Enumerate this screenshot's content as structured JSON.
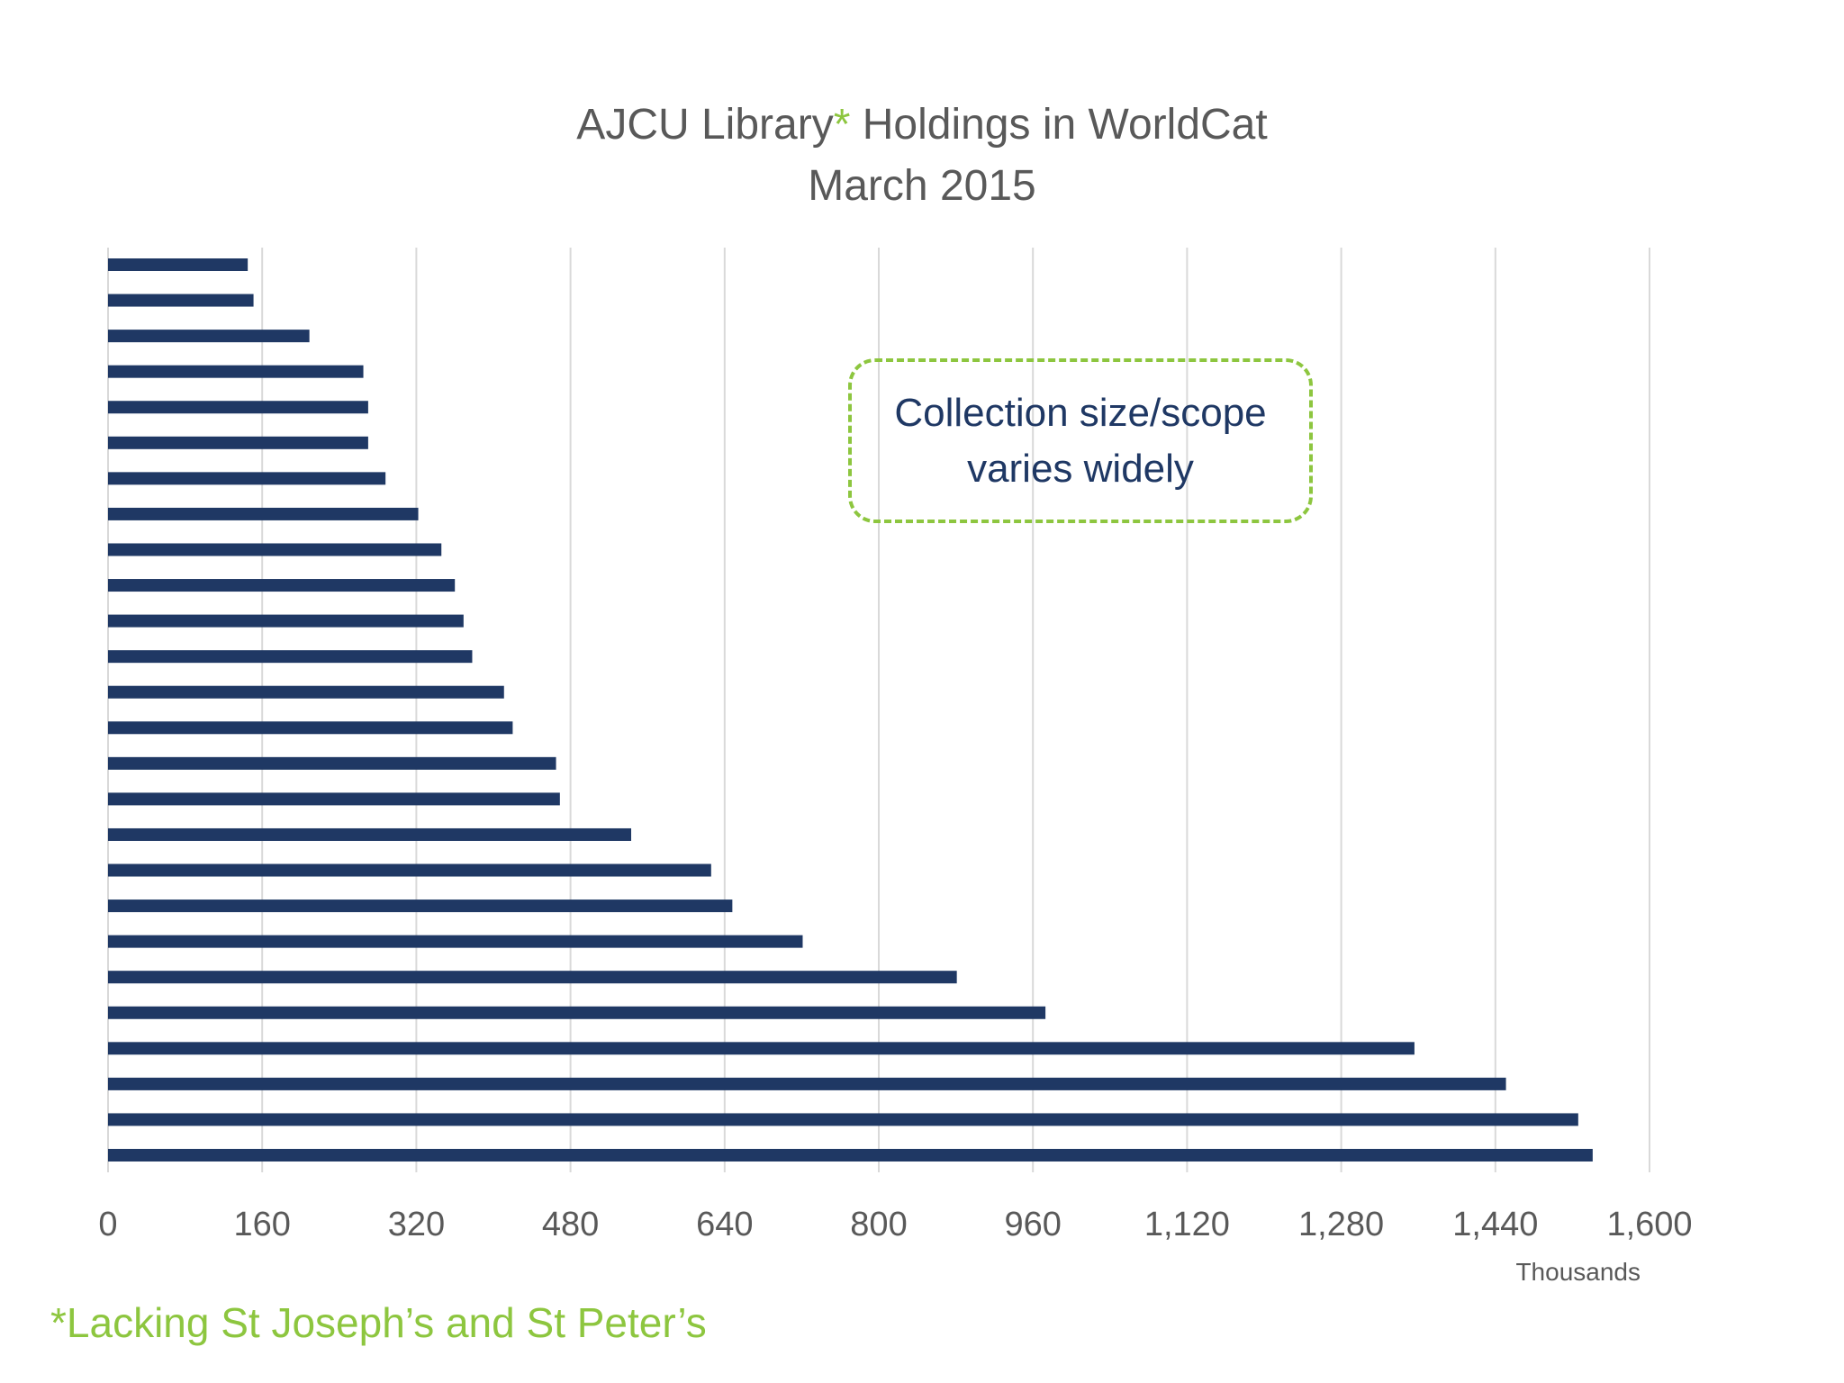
{
  "title": {
    "prefix": "AJCU Library",
    "asterisk": "*",
    "suffix": " Holdings in WorldCat",
    "line2": "March 2015"
  },
  "callout_text": "Collection size/scope varies widely",
  "footnote": "*Lacking St Joseph’s and St Peter’s",
  "colors": {
    "bar": "#1f3864",
    "accent": "#8dc63f",
    "grid": "#d9d9d9",
    "text": "#595959"
  },
  "chart_data": {
    "type": "bar",
    "orientation": "horizontal",
    "title": "AJCU Library* Holdings in WorldCat March 2015",
    "xlabel": "",
    "ylabel": "",
    "x_unit_label": "Thousands",
    "xlim": [
      0,
      1600
    ],
    "xticks": [
      0,
      160,
      320,
      480,
      640,
      800,
      960,
      1120,
      1280,
      1440,
      1600
    ],
    "xtick_labels": [
      "0",
      "160",
      "320",
      "480",
      "640",
      "800",
      "960",
      "1,120",
      "1,280",
      "1,440",
      "1,600"
    ],
    "grid": "vertical",
    "values": [
      145,
      151,
      209,
      265,
      270,
      270,
      288,
      322,
      346,
      360,
      369,
      378,
      411,
      420,
      465,
      469,
      543,
      626,
      648,
      721,
      881,
      973,
      1356,
      1451,
      1526,
      1541
    ]
  }
}
